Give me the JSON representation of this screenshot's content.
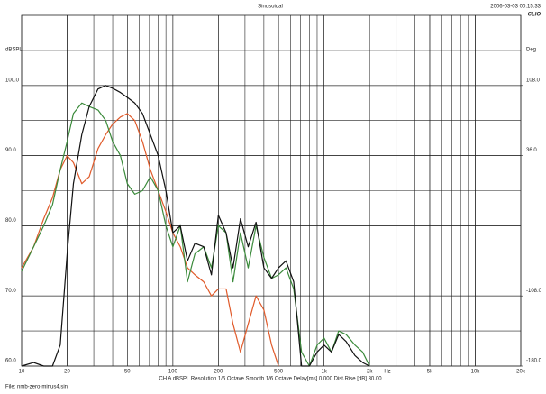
{
  "chart_data": {
    "type": "line",
    "title": "Sinusoidal",
    "timestamp": "2006-03-03 00:15:33",
    "logo": "CLIO",
    "y_label": "dBSPL",
    "y2_label": "Deg",
    "x_label": "Hz",
    "info": "CH A   dBSPL   Resolution 1/6 Octave   Smooth 1/6 Octave   Delay[ms] 0.000   Dist.Rise [dB] 30.00",
    "file": "File: nmb-zero-minus4.sin",
    "log_x": true,
    "grid": true,
    "xlim": [
      10,
      20000
    ],
    "xticks": [
      10,
      20,
      50,
      100,
      200,
      500,
      {
        "value": 1000,
        "label": "1k"
      },
      {
        "value": 2000,
        "label": "2k"
      },
      {
        "value": 5000,
        "label": "5k"
      },
      {
        "value": 10000,
        "label": "10k"
      },
      {
        "value": 20000,
        "label": "20k"
      }
    ],
    "ylim": [
      60,
      110
    ],
    "yticks": [
      {
        "value": 60,
        "label": "60.0"
      },
      {
        "value": 70,
        "label": "70.0"
      },
      {
        "value": 80,
        "label": "80.0"
      },
      {
        "value": 90,
        "label": "90.0"
      },
      {
        "value": 100,
        "label": "100.0"
      }
    ],
    "y2lim": [
      -180,
      180
    ],
    "y2ticks": [
      {
        "value": -180,
        "label": "-180.0"
      },
      {
        "value": -108,
        "label": "-108.0"
      },
      {
        "value": 36,
        "label": "36.0"
      },
      {
        "value": 108,
        "label": "108.0"
      }
    ],
    "x": [
      10,
      12,
      14,
      16,
      18,
      20,
      22,
      25,
      28,
      32,
      36,
      40,
      45,
      50,
      56,
      63,
      71,
      80,
      90,
      100,
      112,
      125,
      140,
      160,
      180,
      200,
      225,
      250,
      280,
      315,
      355,
      400,
      450,
      500,
      560,
      630,
      710,
      800,
      900,
      1000,
      1120,
      1250,
      1400,
      1600,
      1800,
      2000
    ],
    "series": [
      {
        "color": "#111111",
        "values": [
          60,
          60.5,
          60,
          60,
          63,
          76,
          86,
          93,
          97,
          99.5,
          100,
          99.6,
          99,
          98.3,
          97.5,
          96,
          93,
          90,
          85,
          79,
          80,
          75,
          77.5,
          77,
          73,
          81.5,
          79,
          74,
          81,
          77,
          80.5,
          74,
          72.5,
          74,
          75,
          72,
          60,
          60,
          62,
          63,
          62,
          64.5,
          63.5,
          61.5,
          60.5,
          60
        ]
      },
      {
        "color": "#3a8a3a",
        "values": [
          73.5,
          77,
          80,
          83,
          88,
          92,
          96,
          97.5,
          97,
          96.5,
          95,
          92,
          90,
          86,
          84.5,
          85,
          87,
          85,
          80,
          77,
          80,
          72,
          76,
          77,
          74,
          80,
          79,
          72,
          79,
          74,
          80,
          75.5,
          72.5,
          73,
          74,
          71,
          62,
          60,
          63,
          64,
          62,
          65,
          64.5,
          63,
          62,
          60
        ]
      },
      {
        "color": "#e05a2a",
        "values": [
          74,
          77,
          81,
          84,
          88,
          90,
          89,
          86,
          87,
          91,
          93,
          94.5,
          95.5,
          96,
          95,
          92,
          88,
          85,
          82,
          79,
          77,
          74,
          73,
          72,
          70,
          71,
          71,
          66,
          62,
          66,
          70,
          68,
          63,
          60,
          null,
          null,
          null,
          null,
          null,
          null,
          null,
          null,
          null,
          null,
          null,
          null
        ]
      }
    ]
  }
}
